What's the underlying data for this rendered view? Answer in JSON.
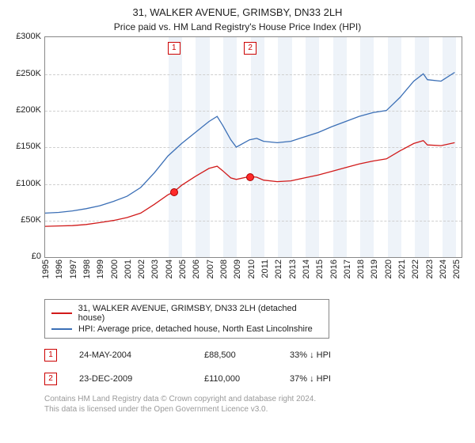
{
  "title_line1": "31, WALKER AVENUE, GRIMSBY, DN33 2LH",
  "title_line2": "Price paid vs. HM Land Registry's House Price Index (HPI)",
  "chart": {
    "type": "line",
    "background_color": "#ffffff",
    "grid_color": "#cfcfcf",
    "border_color": "#888888",
    "band_color": "#eef3f9",
    "x": {
      "min": 1995,
      "max": 2025.5,
      "ticks": [
        1995,
        1996,
        1997,
        1998,
        1999,
        2000,
        2001,
        2002,
        2003,
        2004,
        2005,
        2006,
        2007,
        2008,
        2009,
        2010,
        2011,
        2012,
        2013,
        2014,
        2015,
        2016,
        2017,
        2018,
        2019,
        2020,
        2021,
        2022,
        2023,
        2024,
        2025
      ]
    },
    "y": {
      "min": 0,
      "max": 300000,
      "ticks": [
        0,
        50000,
        100000,
        150000,
        200000,
        250000,
        300000
      ],
      "tick_labels": [
        "£0",
        "£50K",
        "£100K",
        "£150K",
        "£200K",
        "£250K",
        "£300K"
      ],
      "label_fontsize": 11
    },
    "bands_start": 2004,
    "series": [
      {
        "name": "property",
        "color": "#d11a1a",
        "width": 1.3,
        "points": [
          [
            1995,
            42000
          ],
          [
            1996,
            42500
          ],
          [
            1997,
            43000
          ],
          [
            1998,
            44500
          ],
          [
            1999,
            47000
          ],
          [
            2000,
            50000
          ],
          [
            2001,
            54000
          ],
          [
            2002,
            60000
          ],
          [
            2003,
            72000
          ],
          [
            2004,
            85000
          ],
          [
            2004.4,
            88500
          ],
          [
            2005,
            98000
          ],
          [
            2006,
            110000
          ],
          [
            2007,
            121000
          ],
          [
            2007.6,
            124000
          ],
          [
            2008,
            118000
          ],
          [
            2008.6,
            108000
          ],
          [
            2009,
            106000
          ],
          [
            2009.97,
            110000
          ],
          [
            2010.5,
            109000
          ],
          [
            2011,
            105000
          ],
          [
            2012,
            103000
          ],
          [
            2013,
            104000
          ],
          [
            2014,
            108000
          ],
          [
            2015,
            112000
          ],
          [
            2016,
            117000
          ],
          [
            2017,
            122000
          ],
          [
            2018,
            127000
          ],
          [
            2019,
            131000
          ],
          [
            2020,
            134000
          ],
          [
            2021,
            145000
          ],
          [
            2022,
            155000
          ],
          [
            2022.7,
            159000
          ],
          [
            2023,
            153000
          ],
          [
            2024,
            152000
          ],
          [
            2025,
            156000
          ]
        ]
      },
      {
        "name": "hpi",
        "color": "#3b6fb6",
        "width": 1.3,
        "points": [
          [
            1995,
            60000
          ],
          [
            1996,
            61000
          ],
          [
            1997,
            63000
          ],
          [
            1998,
            66000
          ],
          [
            1999,
            70000
          ],
          [
            2000,
            76000
          ],
          [
            2001,
            83000
          ],
          [
            2002,
            95000
          ],
          [
            2003,
            115000
          ],
          [
            2004,
            138000
          ],
          [
            2005,
            155000
          ],
          [
            2006,
            170000
          ],
          [
            2007,
            185000
          ],
          [
            2007.6,
            192000
          ],
          [
            2008,
            180000
          ],
          [
            2008.6,
            160000
          ],
          [
            2009,
            150000
          ],
          [
            2009.97,
            160000
          ],
          [
            2010.5,
            162000
          ],
          [
            2011,
            158000
          ],
          [
            2012,
            156000
          ],
          [
            2013,
            158000
          ],
          [
            2014,
            164000
          ],
          [
            2015,
            170000
          ],
          [
            2016,
            178000
          ],
          [
            2017,
            185000
          ],
          [
            2018,
            192000
          ],
          [
            2019,
            197000
          ],
          [
            2020,
            200000
          ],
          [
            2021,
            218000
          ],
          [
            2022,
            240000
          ],
          [
            2022.7,
            250000
          ],
          [
            2023,
            242000
          ],
          [
            2024,
            240000
          ],
          [
            2025,
            252000
          ]
        ]
      }
    ],
    "sale_markers": [
      {
        "n": "1",
        "x": 2004.4,
        "y": 88500
      },
      {
        "n": "2",
        "x": 2009.97,
        "y": 110000
      }
    ]
  },
  "legend": {
    "property": "31, WALKER AVENUE, GRIMSBY, DN33 2LH (detached house)",
    "hpi": "HPI: Average price, detached house, North East Lincolnshire"
  },
  "sales": [
    {
      "n": "1",
      "date": "24-MAY-2004",
      "price": "£88,500",
      "pct": "33% ↓ HPI"
    },
    {
      "n": "2",
      "date": "23-DEC-2009",
      "price": "£110,000",
      "pct": "37% ↓ HPI"
    }
  ],
  "footer_line1": "Contains HM Land Registry data © Crown copyright and database right 2024.",
  "footer_line2": "This data is licensed under the Open Government Licence v3.0.",
  "colors": {
    "property": "#d11a1a",
    "hpi": "#3b6fb6",
    "marker_border": "#cc0000",
    "footer": "#9a9a9a"
  }
}
